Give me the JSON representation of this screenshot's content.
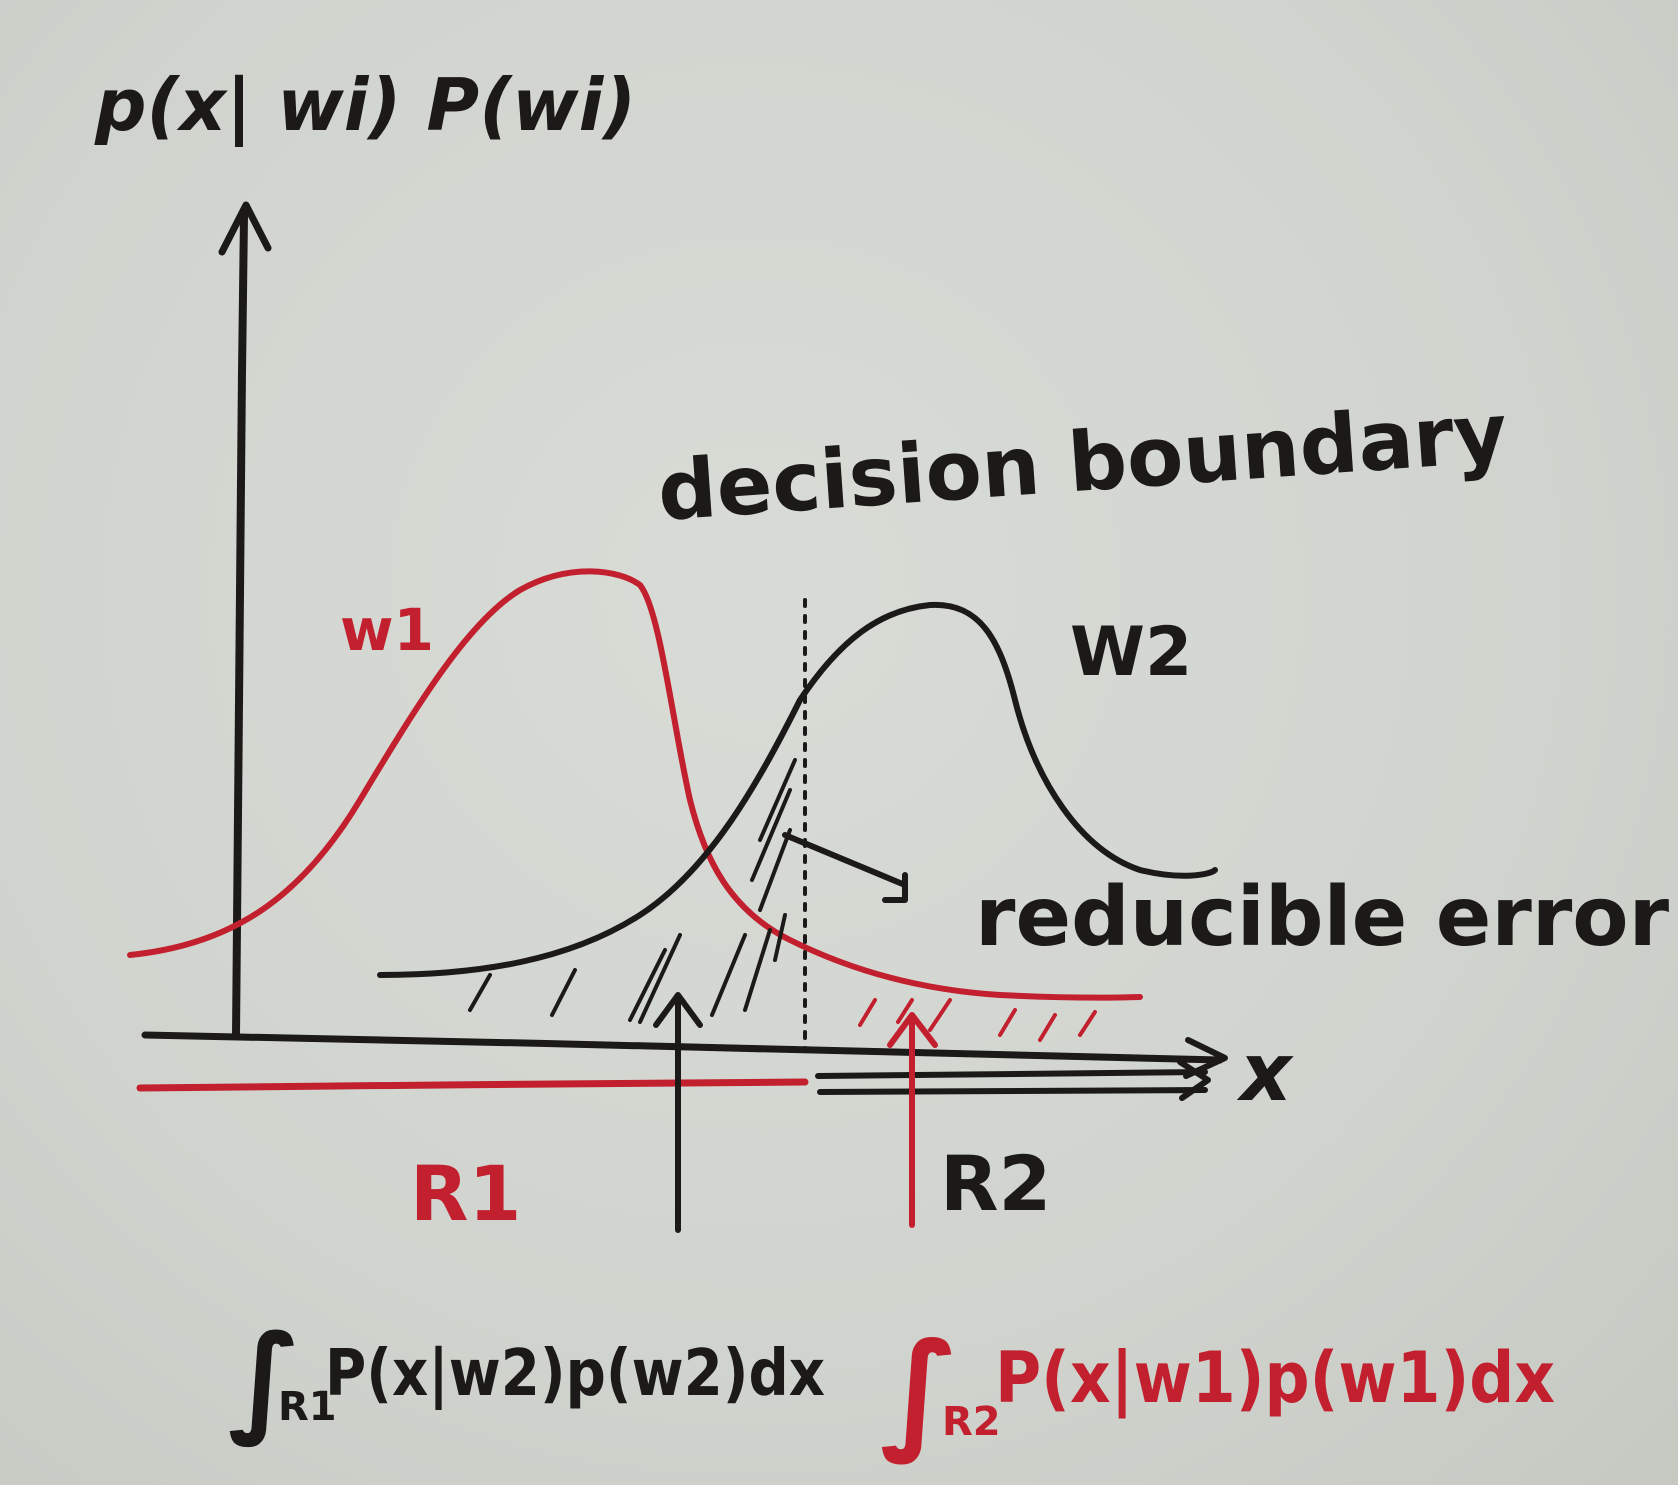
{
  "y_axis_label": "p(x| wi) P(wi)",
  "x_axis_label": "x",
  "curve_w1_label": "w1",
  "curve_w2_label": "W2",
  "decision_boundary_label": "decision boundary",
  "reducible_error_label": "reducible error",
  "region_r1_label": "R1",
  "region_r2_label": "R2",
  "error_integral_r1": {
    "prefix": "∫",
    "subscript": "R1",
    "body": "P(x|w2)p(w2)dx"
  },
  "error_integral_r2": {
    "prefix": "∫",
    "subscript": "R2",
    "body": "P(x|w1)p(w1)dx"
  },
  "colors": {
    "ink": "#1c1a18",
    "red_ink": "#c2202e",
    "paper": "#d3d6d0"
  }
}
